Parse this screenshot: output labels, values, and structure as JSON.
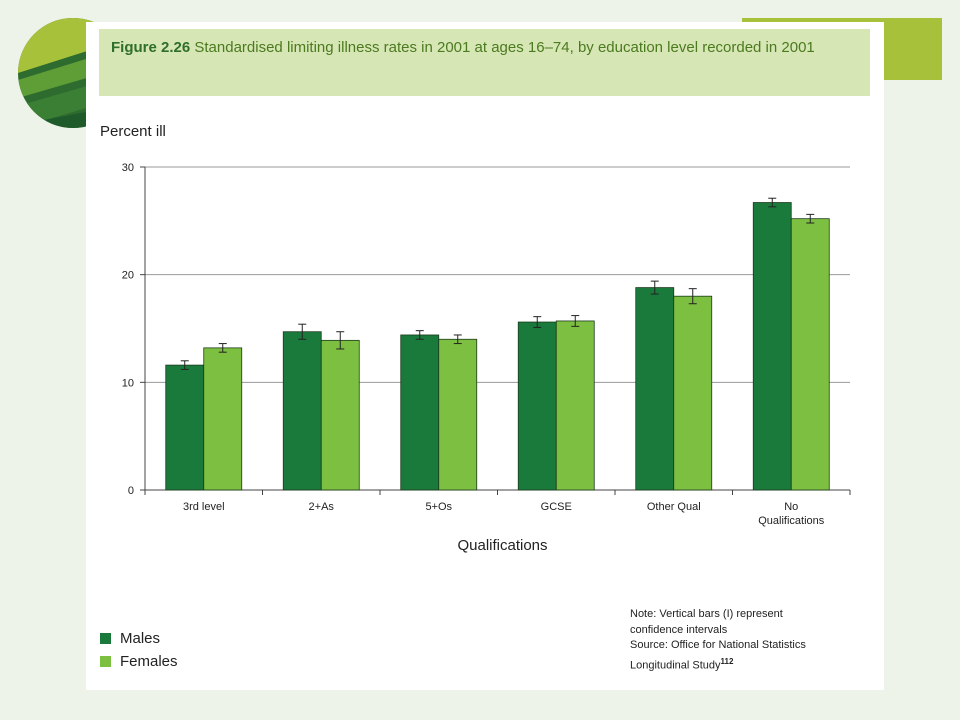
{
  "slide": {
    "colors": {
      "background": "#eef3ea",
      "panel": "#ffffff",
      "title_band": "#d7e6b5",
      "accent_dark": "#2e6b2f",
      "accent_light": "#a7c13a"
    }
  },
  "figure": {
    "number": "Figure 2.26",
    "title": "Standardised limiting illness rates in 2001 at ages 16–74, by education level recorded in 2001",
    "note_line1": "Note: Vertical bars (I) represent",
    "note_line2": "confidence intervals",
    "source_line1": "Source: Office for National Statistics",
    "source_line2": "Longitudinal Study",
    "source_ref": "112"
  },
  "chart_data": {
    "type": "bar",
    "ylabel": "Percent ill",
    "xlabel": "Qualifications",
    "ylim": [
      0,
      30
    ],
    "yticks": [
      0,
      10,
      20,
      30
    ],
    "grid": true,
    "legend_position": "bottom-left",
    "categories": [
      "3rd level",
      "2+As",
      "5+Os",
      "GCSE",
      "Other Qual",
      "No Qualifications"
    ],
    "category_lines": [
      [
        "3rd level"
      ],
      [
        "2+As"
      ],
      [
        "5+Os"
      ],
      [
        "GCSE"
      ],
      [
        "Other Qual"
      ],
      [
        "No",
        "Qualifications"
      ]
    ],
    "series": [
      {
        "name": "Males",
        "color": "#1a7a3c",
        "values": [
          11.6,
          14.7,
          14.4,
          15.6,
          18.8,
          26.7
        ],
        "ci_low": [
          11.2,
          14.0,
          14.0,
          15.1,
          18.2,
          26.3
        ],
        "ci_high": [
          12.0,
          15.4,
          14.8,
          16.1,
          19.4,
          27.1
        ]
      },
      {
        "name": "Females",
        "color": "#7dbf40",
        "values": [
          13.2,
          13.9,
          14.0,
          15.7,
          18.0,
          25.2
        ],
        "ci_low": [
          12.8,
          13.1,
          13.6,
          15.2,
          17.3,
          24.8
        ],
        "ci_high": [
          13.6,
          14.7,
          14.4,
          16.2,
          18.7,
          25.6
        ]
      }
    ]
  }
}
